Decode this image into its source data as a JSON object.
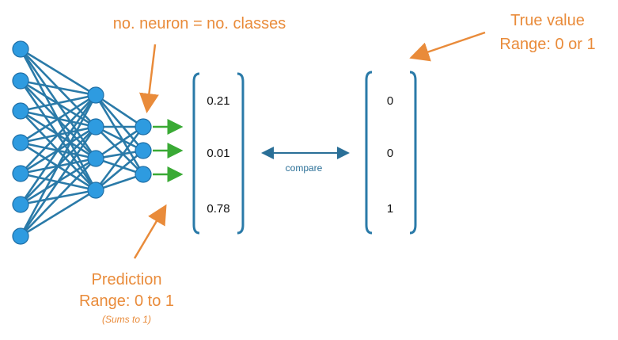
{
  "colors": {
    "neuron_fill": "#2e9be0",
    "neuron_stroke": "#1f6fa6",
    "edge": "#2a7aa8",
    "output_arrow": "#3aaa35",
    "annotation": "#e98b3a",
    "bracket": "#2a7aa8",
    "compare": "#2a6f97"
  },
  "network": {
    "layers": [
      7,
      4,
      3
    ],
    "output_arrows": 3
  },
  "annotations": {
    "neurons_classes": "no. neuron = no. classes",
    "prediction_title": "Prediction",
    "prediction_range": "Range: 0 to 1",
    "prediction_note": "(Sums to 1)",
    "true_title": "True value",
    "true_range": "Range: 0 or 1"
  },
  "prediction_vector": [
    "0.21",
    "0.01",
    "0.78"
  ],
  "true_vector": [
    "0",
    "0",
    "1"
  ],
  "compare_label": "compare"
}
